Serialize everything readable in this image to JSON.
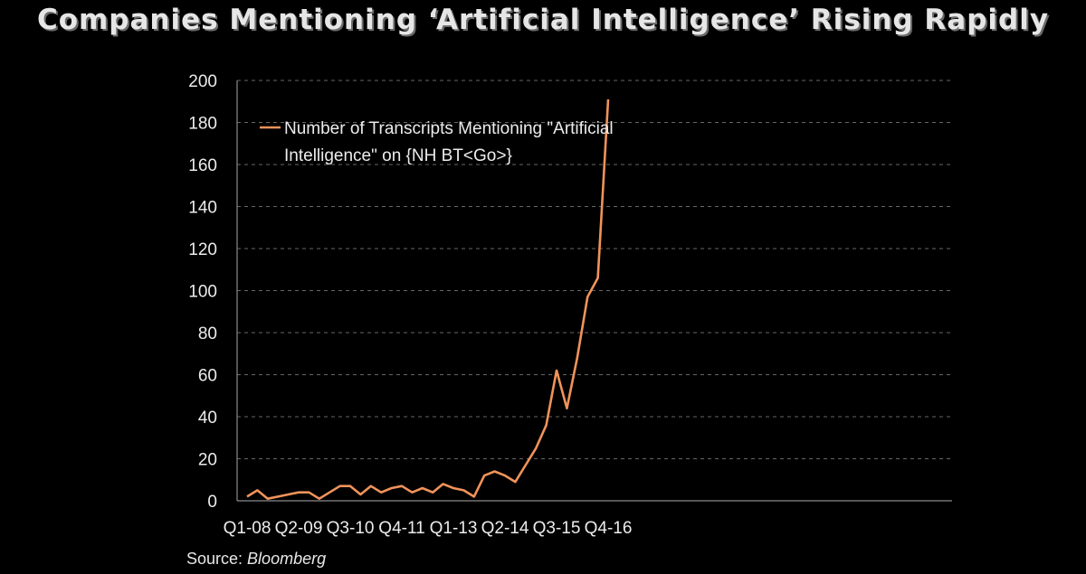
{
  "title": "Companies Mentioning ‘Artificial Intelligence’ Rising Rapidly",
  "source": {
    "prefix": "Source: ",
    "name": "Bloomberg"
  },
  "colors": {
    "background": "#000000",
    "line": "#f0935a",
    "text": "#ececec",
    "grid": "#666666"
  },
  "chart_data": {
    "type": "line",
    "title": "Companies Mentioning ‘Artificial Intelligence’ Rising Rapidly",
    "xlabel": "",
    "ylabel": "",
    "ylim": [
      0,
      200
    ],
    "yticks": [
      0,
      20,
      40,
      60,
      80,
      100,
      120,
      140,
      160,
      180,
      200
    ],
    "xtick_labels": [
      "Q1-08",
      "Q2-09",
      "Q3-10",
      "Q4-11",
      "Q1-13",
      "Q2-14",
      "Q3-15",
      "Q4-16"
    ],
    "grid": "horizontal dashed",
    "legend_position": "top-left",
    "categories": [
      "Q1-08",
      "Q2-08",
      "Q3-08",
      "Q4-08",
      "Q1-09",
      "Q2-09",
      "Q3-09",
      "Q4-09",
      "Q1-10",
      "Q2-10",
      "Q3-10",
      "Q4-10",
      "Q1-11",
      "Q2-11",
      "Q3-11",
      "Q4-11",
      "Q1-12",
      "Q2-12",
      "Q3-12",
      "Q4-12",
      "Q1-13",
      "Q2-13",
      "Q3-13",
      "Q4-13",
      "Q1-14",
      "Q2-14",
      "Q3-14",
      "Q4-14",
      "Q1-15",
      "Q2-15",
      "Q3-15",
      "Q4-15",
      "Q1-16",
      "Q2-16",
      "Q3-16",
      "Q4-16"
    ],
    "series": [
      {
        "name": "Number of Transcripts Mentioning \"Artificial Intelligence\" on {NH BT<Go>}",
        "legend_lines": [
          "Number of Transcripts Mentioning \"Artificial",
          "Intelligence\" on {NH BT<Go>}"
        ],
        "values": [
          2,
          5,
          1,
          2,
          3,
          4,
          4,
          1,
          4,
          7,
          7,
          3,
          7,
          4,
          6,
          7,
          4,
          6,
          4,
          8,
          6,
          5,
          2,
          12,
          14,
          12,
          9,
          17,
          25,
          36,
          62,
          44,
          68,
          97,
          106,
          191
        ]
      }
    ]
  }
}
